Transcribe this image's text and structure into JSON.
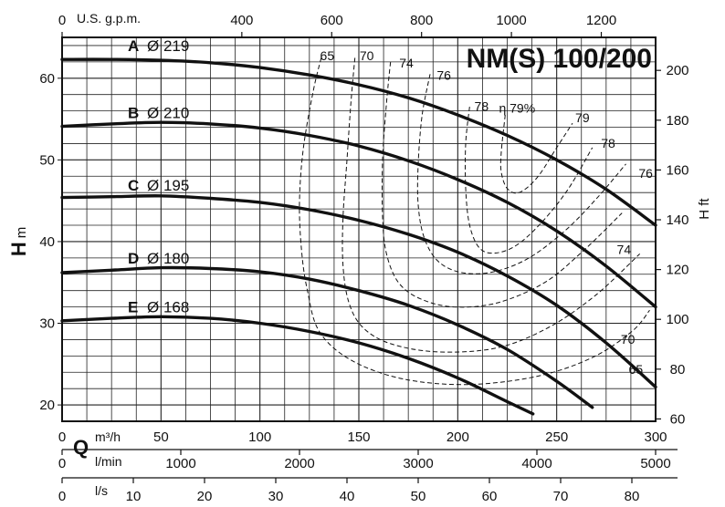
{
  "chart_data": {
    "type": "line",
    "title": "NM(S) 100/200",
    "grid": true,
    "x_primary": {
      "label": "m³/h",
      "range": [
        0,
        300
      ],
      "ticks": [
        0,
        50,
        100,
        150,
        200,
        250,
        300
      ],
      "tick_labels": [
        "0",
        "50",
        "100",
        "150",
        "200",
        "250",
        "300"
      ]
    },
    "x_gpm": {
      "label": "U.S. g.p.m.",
      "ticks": [
        0,
        400,
        600,
        800,
        1000,
        1200
      ],
      "tick_labels": [
        "0",
        "400",
        "600",
        "800",
        "1000",
        "1200"
      ]
    },
    "x_lmin": {
      "label": "l/min",
      "ticks": [
        0,
        1000,
        2000,
        3000,
        4000,
        5000
      ],
      "tick_labels": [
        "0",
        "1000",
        "2000",
        "3000",
        "4000",
        "5000"
      ]
    },
    "x_ls": {
      "label": "l/s",
      "ticks": [
        0,
        10,
        20,
        30,
        40,
        50,
        60,
        70,
        80
      ],
      "tick_labels": [
        "0",
        "10",
        "20",
        "30",
        "40",
        "50",
        "60",
        "70",
        "80"
      ]
    },
    "q_symbol": "Q",
    "y_left": {
      "label_main": "H",
      "label_unit": "m",
      "range": [
        18,
        65
      ],
      "ticks": [
        20,
        30,
        40,
        50,
        60
      ],
      "tick_labels": [
        "20",
        "30",
        "40",
        "50",
        "60"
      ]
    },
    "y_right": {
      "label": "H ft",
      "ticks": [
        60,
        80,
        100,
        120,
        140,
        160,
        180,
        200
      ],
      "tick_labels": [
        "60",
        "80",
        "100",
        "120",
        "140",
        "160",
        "180",
        "200"
      ]
    },
    "series": [
      {
        "name": "A",
        "diameter": "Ø 219",
        "x": [
          0,
          25,
          50,
          75,
          100,
          125,
          150,
          175,
          200,
          225,
          250,
          275,
          300
        ],
        "y": [
          62.3,
          62.3,
          62.2,
          61.9,
          61.3,
          60.4,
          59.2,
          57.6,
          55.5,
          53.0,
          50.0,
          46.4,
          42.0
        ]
      },
      {
        "name": "B",
        "diameter": "Ø 210",
        "x": [
          0,
          25,
          50,
          75,
          100,
          125,
          150,
          175,
          200,
          225,
          250,
          275,
          300
        ],
        "y": [
          54.1,
          54.4,
          54.6,
          54.4,
          53.9,
          53.0,
          51.7,
          49.9,
          47.6,
          44.8,
          41.3,
          37.0,
          32.0
        ]
      },
      {
        "name": "C",
        "diameter": "Ø 195",
        "x": [
          0,
          25,
          50,
          75,
          100,
          125,
          150,
          175,
          200,
          225,
          250,
          275,
          300
        ],
        "y": [
          45.4,
          45.5,
          45.6,
          45.3,
          44.8,
          43.9,
          42.6,
          40.9,
          38.7,
          35.8,
          32.2,
          27.6,
          22.2
        ]
      },
      {
        "name": "D",
        "diameter": "Ø 180",
        "x": [
          0,
          25,
          50,
          75,
          100,
          125,
          150,
          175,
          200,
          225,
          250,
          268
        ],
        "y": [
          36.2,
          36.5,
          36.8,
          36.7,
          36.3,
          35.4,
          34.0,
          32.2,
          29.8,
          26.8,
          22.9,
          19.7
        ]
      },
      {
        "name": "E",
        "diameter": "Ø 168",
        "x": [
          0,
          25,
          50,
          75,
          100,
          125,
          150,
          175,
          200,
          225,
          238
        ],
        "y": [
          30.3,
          30.6,
          30.8,
          30.6,
          30.0,
          29.0,
          27.6,
          25.7,
          23.3,
          20.4,
          18.9
        ]
      }
    ],
    "efficiency_contours": [
      {
        "label": "65",
        "x": [
          131,
          127,
          122,
          120,
          121,
          124,
          130,
          146,
          172,
          205,
          240,
          268,
          288,
          297
        ],
        "y": [
          62.5,
          58.5,
          51.5,
          45.0,
          39.0,
          34.0,
          29.0,
          25.5,
          23.2,
          22.5,
          23.5,
          25.8,
          29.0,
          31.6
        ]
      },
      {
        "label": "70",
        "x": [
          148,
          146,
          144,
          142,
          142,
          145,
          152,
          166,
          190,
          220,
          246,
          270,
          292
        ],
        "y": [
          62.5,
          57.0,
          50.0,
          43.0,
          37.0,
          32.5,
          29.5,
          27.5,
          26.5,
          27.0,
          29.5,
          33.5,
          38.5
        ]
      },
      {
        "label": "74",
        "x": [
          166,
          164,
          162,
          162,
          164,
          170,
          181,
          198,
          220,
          244,
          264,
          283
        ],
        "y": [
          62.0,
          57.0,
          50.0,
          43.0,
          38.5,
          35.0,
          33.0,
          32.0,
          32.5,
          35.0,
          39.0,
          43.5
        ]
      },
      {
        "label": "76",
        "x": [
          186,
          182,
          180,
          180,
          183,
          190,
          202,
          218,
          236,
          255,
          271,
          285
        ],
        "y": [
          60.5,
          55.5,
          49.5,
          44.5,
          40.5,
          37.6,
          36.2,
          36.3,
          38.0,
          41.5,
          45.5,
          49.5
        ]
      },
      {
        "label": "78",
        "x": [
          206,
          204,
          204,
          206,
          211,
          219,
          230,
          243,
          256,
          268
        ],
        "y": [
          56.5,
          52.0,
          46.5,
          42.0,
          39.2,
          38.6,
          39.6,
          42.5,
          46.5,
          51.5
        ]
      },
      {
        "label": "79",
        "x": [
          224,
          222,
          222,
          225,
          231,
          240,
          250,
          258
        ],
        "y": [
          55.5,
          51.0,
          48.5,
          46.5,
          46.0,
          47.8,
          51.5,
          54.5
        ]
      }
    ],
    "efficiency_label_suffix": "η 79%",
    "curve_labels": {
      "A": {
        "letter": "A",
        "diameter": "Ø 219"
      },
      "B": {
        "letter": "B",
        "diameter": "Ø 210"
      },
      "C": {
        "letter": "C",
        "diameter": "Ø 195"
      },
      "D": {
        "letter": "D",
        "diameter": "Ø 180"
      },
      "E": {
        "letter": "E",
        "diameter": "Ø 168"
      }
    }
  }
}
